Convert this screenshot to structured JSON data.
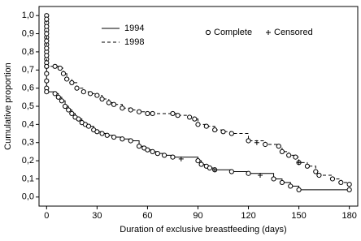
{
  "chart_data": {
    "type": "survival",
    "xlabel": "Duration of exclusive breastfeeding (days)",
    "ylabel": "Cumulative proportion",
    "xlim": [
      -4.5,
      185
    ],
    "ylim": [
      -0.05,
      1.05
    ],
    "xticks": [
      0,
      30,
      60,
      90,
      120,
      150,
      180
    ],
    "yticks": [
      {
        "value": 0,
        "label": "0,0"
      },
      {
        "value": 0.1,
        "label": "0,1"
      },
      {
        "value": 0.2,
        "label": "0,2"
      },
      {
        "value": 0.3,
        "label": "0,3"
      },
      {
        "value": 0.4,
        "label": "0,4"
      },
      {
        "value": 0.5,
        "label": "0,5"
      },
      {
        "value": 0.6,
        "label": "0,6"
      },
      {
        "value": 0.7,
        "label": "0,7"
      },
      {
        "value": 0.8,
        "label": "0,8"
      },
      {
        "value": 0.9,
        "label": "0,9"
      },
      {
        "value": 1.0,
        "label": "1,0"
      }
    ],
    "marker_legend": {
      "complete": "Complete",
      "censored": "Censored"
    },
    "series": [
      {
        "name": "1994",
        "color": "#000000",
        "dash": false,
        "x": [
          0,
          0,
          0,
          0,
          0,
          0,
          0,
          0,
          0,
          0,
          0,
          0,
          5,
          7,
          9,
          11,
          13,
          15,
          17,
          19,
          21,
          23,
          25,
          28,
          30,
          33,
          36,
          40,
          45,
          50,
          55,
          58,
          60,
          63,
          66,
          70,
          75,
          90,
          92,
          95,
          97,
          100,
          110,
          120,
          135,
          140,
          145,
          150,
          180
        ],
        "values": [
          1.0,
          0.96,
          0.92,
          0.88,
          0.84,
          0.8,
          0.76,
          0.72,
          0.68,
          0.64,
          0.6,
          0.58,
          0.57,
          0.55,
          0.53,
          0.5,
          0.48,
          0.46,
          0.44,
          0.43,
          0.41,
          0.4,
          0.39,
          0.37,
          0.36,
          0.35,
          0.34,
          0.33,
          0.32,
          0.31,
          0.28,
          0.27,
          0.26,
          0.25,
          0.24,
          0.23,
          0.22,
          0.2,
          0.18,
          0.17,
          0.16,
          0.15,
          0.14,
          0.13,
          0.1,
          0.08,
          0.06,
          0.04,
          0.04
        ],
        "censored": {
          "x": [
            80,
            100,
            127
          ],
          "values": [
            0.21,
            0.15,
            0.12
          ]
        }
      },
      {
        "name": "1998",
        "color": "#000000",
        "dash": true,
        "x": [
          0,
          0,
          0,
          0,
          0,
          0,
          0,
          0,
          5,
          8,
          10,
          12,
          15,
          18,
          22,
          26,
          30,
          33,
          37,
          40,
          45,
          50,
          55,
          60,
          63,
          75,
          78,
          85,
          88,
          90,
          95,
          100,
          105,
          110,
          120,
          130,
          138,
          140,
          144,
          148,
          150,
          155,
          160,
          162,
          170,
          175,
          180
        ],
        "values": [
          0.98,
          0.94,
          0.9,
          0.86,
          0.82,
          0.78,
          0.74,
          0.72,
          0.72,
          0.71,
          0.68,
          0.65,
          0.63,
          0.6,
          0.58,
          0.57,
          0.56,
          0.54,
          0.52,
          0.51,
          0.49,
          0.48,
          0.47,
          0.46,
          0.46,
          0.46,
          0.45,
          0.44,
          0.43,
          0.4,
          0.39,
          0.37,
          0.36,
          0.35,
          0.31,
          0.29,
          0.28,
          0.25,
          0.23,
          0.22,
          0.19,
          0.17,
          0.14,
          0.12,
          0.1,
          0.08,
          0.07
        ],
        "censored": {
          "x": [
            125,
            150
          ],
          "values": [
            0.3,
            0.19
          ]
        }
      }
    ]
  }
}
